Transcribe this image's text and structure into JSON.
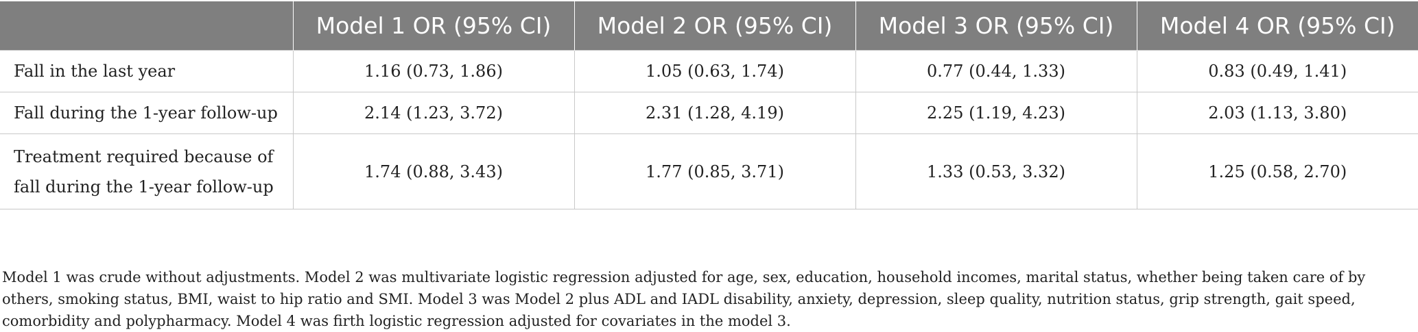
{
  "table": {
    "headers": [
      "",
      "Model 1 OR (95% CI)",
      "Model 2 OR (95% CI)",
      "Model 3 OR (95% CI)",
      "Model 4 OR (95% CI)"
    ],
    "rows": [
      {
        "label": "Fall in the last year",
        "values": [
          "1.16 (0.73, 1.86)",
          "1.05 (0.63, 1.74)",
          "0.77 (0.44, 1.33)",
          "0.83 (0.49, 1.41)"
        ]
      },
      {
        "label": "Fall during the 1-year follow-up",
        "values": [
          "2.14 (1.23, 3.72)",
          "2.31 (1.28, 4.19)",
          "2.25 (1.19, 4.23)",
          "2.03 (1.13, 3.80)"
        ]
      },
      {
        "label": "Treatment required because of fall during the 1-year follow-up",
        "values": [
          "1.74 (0.88, 3.43)",
          "1.77 (0.85, 3.71)",
          "1.33 (0.53, 3.32)",
          "1.25 (0.58, 2.70)"
        ]
      }
    ]
  },
  "footnote": "Model 1 was crude without adjustments. Model 2 was multivariate logistic regression adjusted for age, sex, education, household incomes, marital status, whether being taken care of by others, smoking status, BMI, waist to hip ratio and SMI. Model 3 was Model 2 plus ADL and IADL disability, anxiety, depression, sleep quality, nutrition status, grip strength, gait speed, comorbidity and polypharmacy. Model 4 was firth logistic regression adjusted for covariates in the model 3.",
  "colors": {
    "header_bg": "#7f7f7f",
    "header_text": "#ffffff",
    "grid": "#c8c8c8",
    "text": "#222222"
  }
}
